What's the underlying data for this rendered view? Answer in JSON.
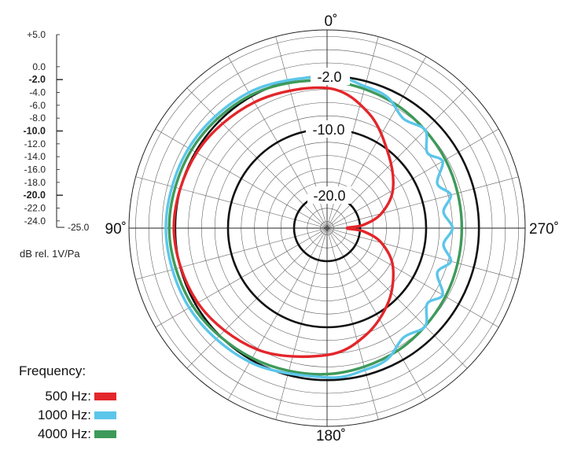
{
  "chart_data": {
    "type": "polar",
    "angle_labels": {
      "top": "0˚",
      "left": "90˚",
      "bottom": "180˚",
      "right": "270˚"
    },
    "ring_labels": [
      "-2.0",
      "-10.0",
      "-20.0"
    ],
    "scale": {
      "ticks": [
        "+5.0",
        "0.0",
        "-2.0",
        "-4.0",
        "-6.0",
        "-8.0",
        "-10.0",
        "-12.0",
        "-14.0",
        "-16.0",
        "-18.0",
        "-20.0",
        "-22.0",
        "-24.0",
        "-25.0"
      ],
      "unit": "dB rel. 1V/Pa"
    },
    "r_range_db": [
      -25,
      5
    ],
    "major_rings_db": [
      -2,
      -10,
      -20
    ],
    "legend_title": "Frequency:",
    "series": [
      {
        "name": "500 Hz:",
        "color": "#e3262b",
        "points": [
          [
            0,
            -3.8
          ],
          [
            30,
            -3.0
          ],
          [
            60,
            -2.2
          ],
          [
            90,
            -1.8
          ],
          [
            120,
            -2.4
          ],
          [
            150,
            -3.8
          ],
          [
            180,
            -5.8
          ],
          [
            200,
            -7.8
          ],
          [
            220,
            -10.5
          ],
          [
            240,
            -13.5
          ],
          [
            255,
            -16.5
          ],
          [
            265,
            -19.5
          ],
          [
            270,
            -22.0
          ],
          [
            275,
            -19.5
          ],
          [
            285,
            -16.5
          ],
          [
            300,
            -13.5
          ],
          [
            320,
            -10.5
          ],
          [
            340,
            -6.5
          ],
          [
            360,
            -3.8
          ]
        ]
      },
      {
        "name": "1000 Hz:",
        "color": "#5cc6ea",
        "points": [
          [
            0,
            -2.0
          ],
          [
            30,
            -1.3
          ],
          [
            60,
            -0.8
          ],
          [
            90,
            -0.6
          ],
          [
            120,
            -0.9
          ],
          [
            150,
            -1.6
          ],
          [
            180,
            -2.4
          ],
          [
            195,
            -2.8
          ],
          [
            205,
            -3.2
          ],
          [
            215,
            -4.8
          ],
          [
            225,
            -4.0
          ],
          [
            233,
            -6.0
          ],
          [
            240,
            -4.8
          ],
          [
            248,
            -7.0
          ],
          [
            255,
            -5.6
          ],
          [
            262,
            -7.2
          ],
          [
            270,
            -6.0
          ],
          [
            278,
            -7.2
          ],
          [
            285,
            -5.6
          ],
          [
            292,
            -7.0
          ],
          [
            300,
            -4.8
          ],
          [
            307,
            -6.0
          ],
          [
            315,
            -4.0
          ],
          [
            325,
            -4.8
          ],
          [
            335,
            -3.2
          ],
          [
            345,
            -2.8
          ],
          [
            360,
            -2.0
          ]
        ]
      },
      {
        "name": "4000 Hz:",
        "color": "#3e9a5a",
        "points": [
          [
            0,
            -2.7
          ],
          [
            30,
            -1.8
          ],
          [
            60,
            -1.3
          ],
          [
            90,
            -1.1
          ],
          [
            120,
            -1.5
          ],
          [
            150,
            -2.3
          ],
          [
            180,
            -2.9
          ],
          [
            210,
            -3.6
          ],
          [
            240,
            -4.3
          ],
          [
            270,
            -4.6
          ],
          [
            300,
            -4.3
          ],
          [
            330,
            -3.6
          ],
          [
            360,
            -2.7
          ]
        ]
      }
    ]
  }
}
